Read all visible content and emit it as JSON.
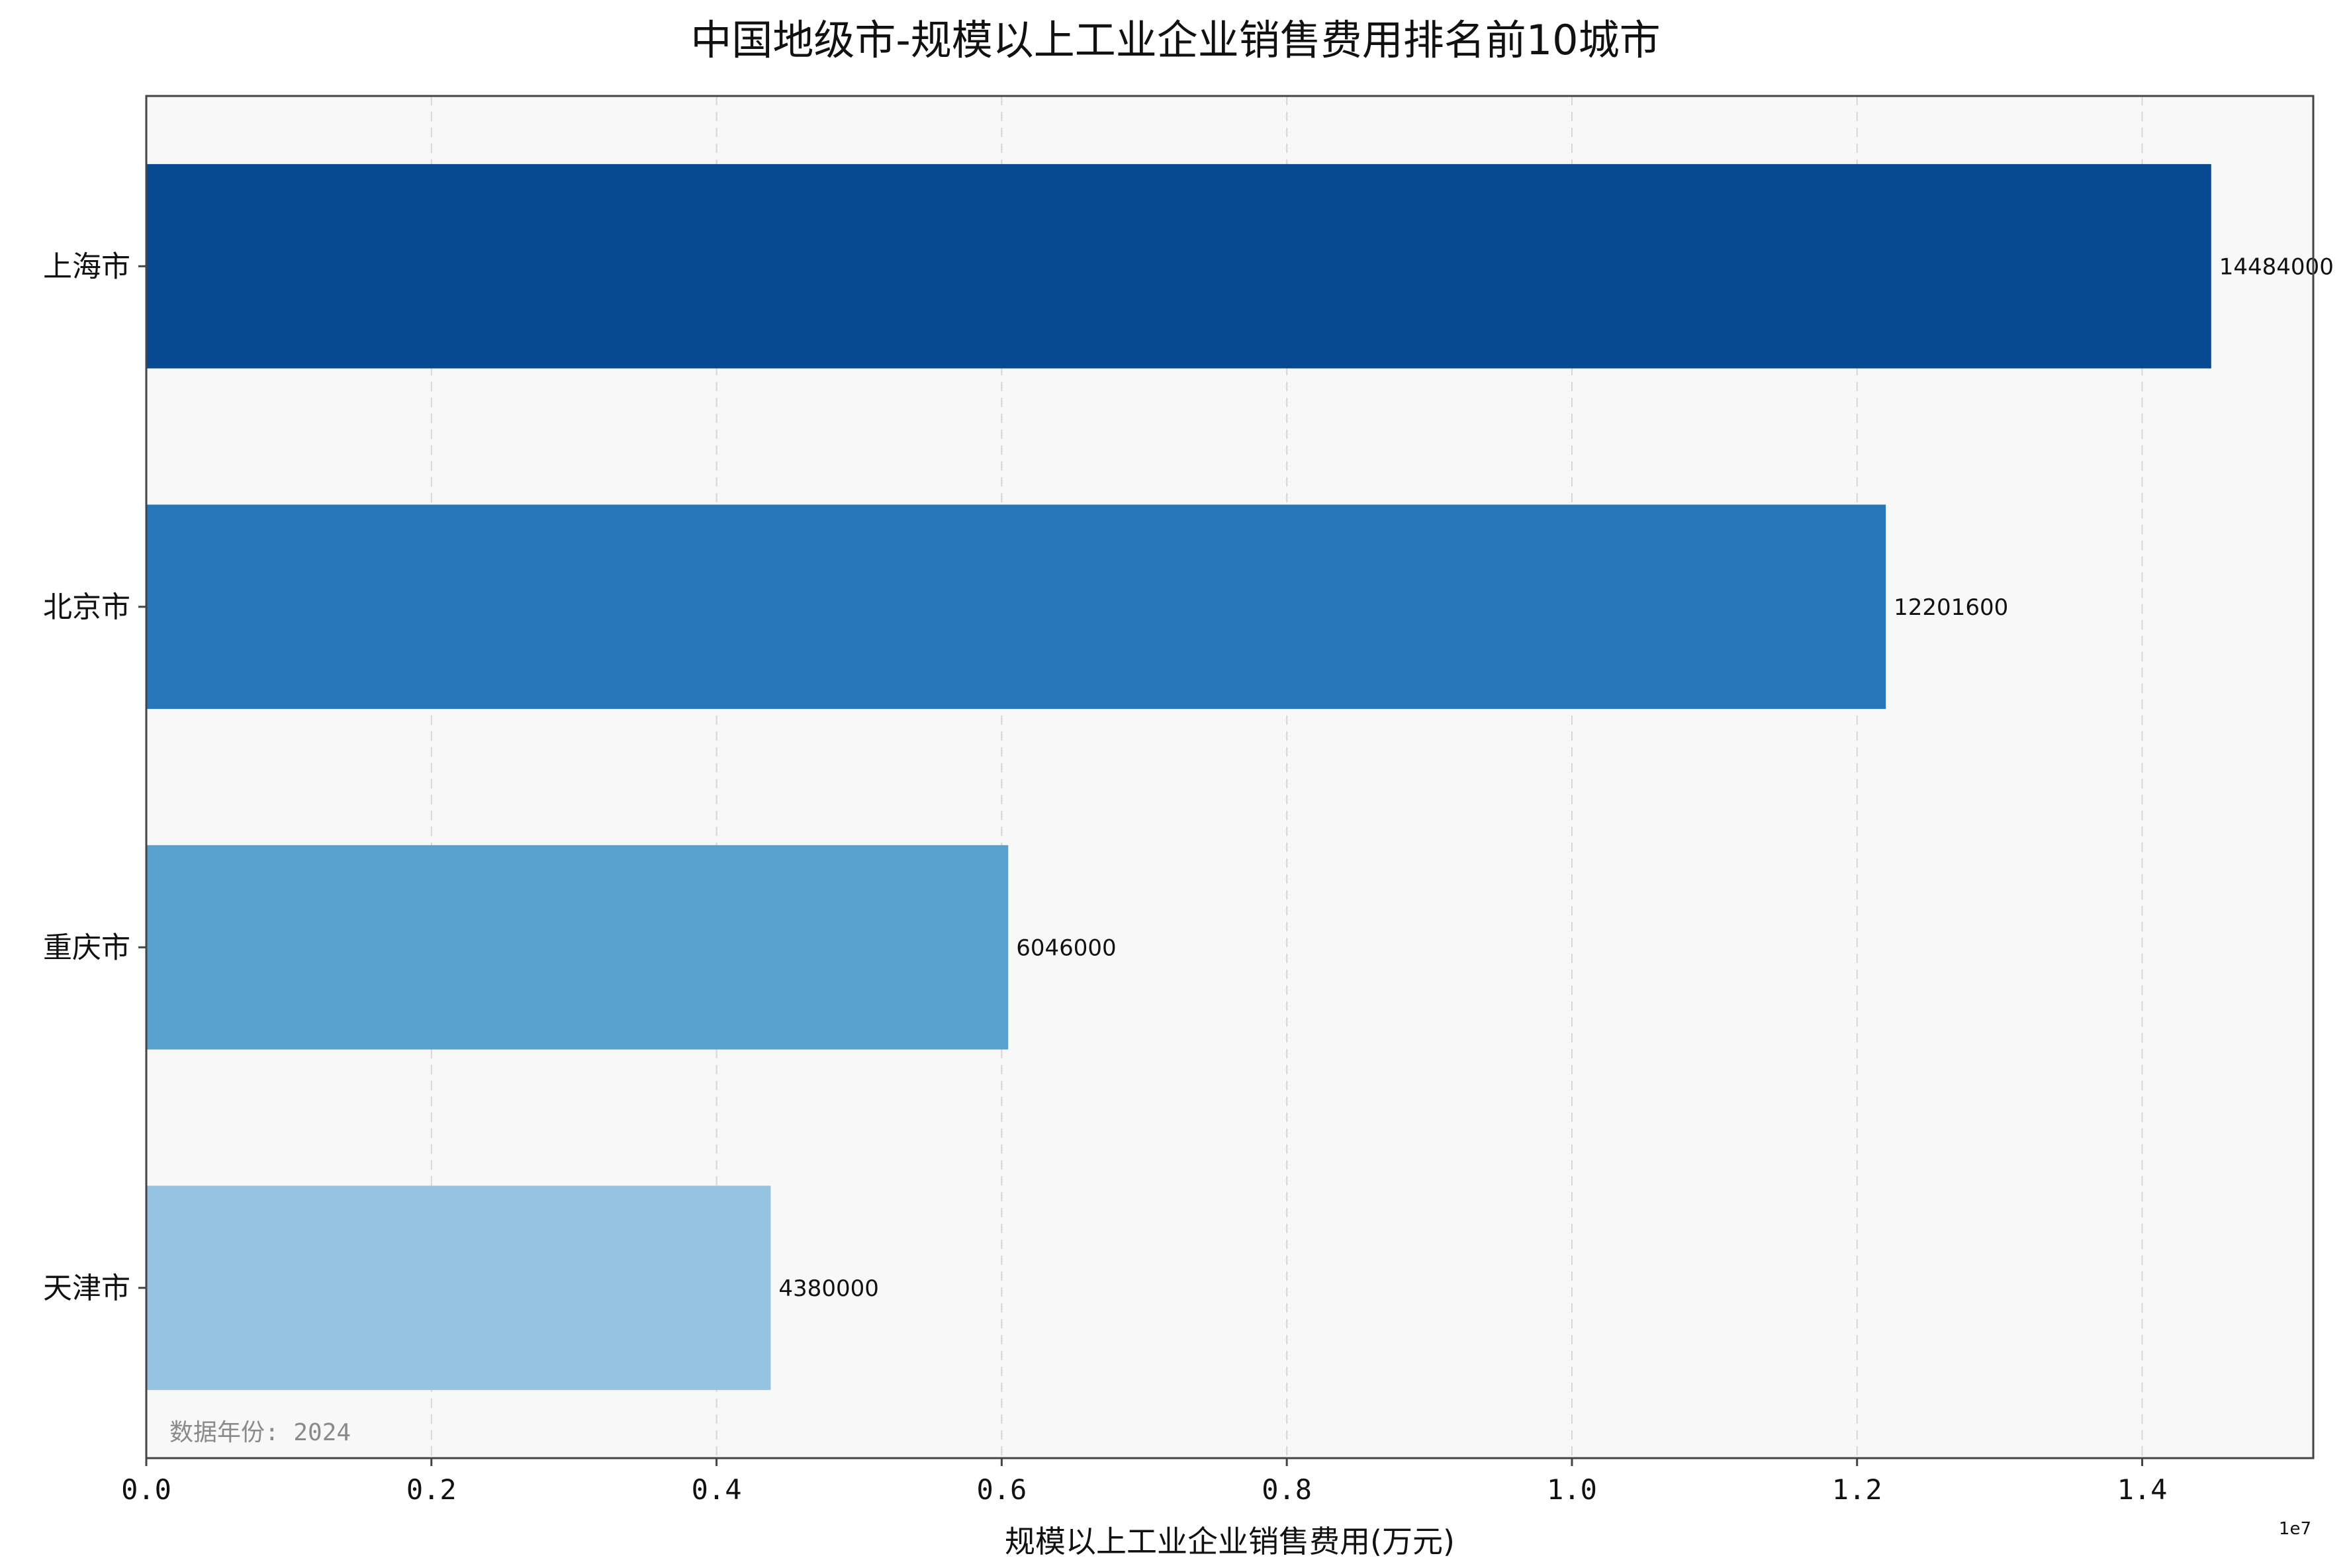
{
  "chart_data": {
    "type": "bar",
    "orientation": "horizontal",
    "title": "中国地级市-规模以上工业企业销售费用排名前10城市",
    "xlabel": "规模以上工业企业销售费用(万元)",
    "ylabel": "",
    "axis_offset_label": "1e7",
    "categories": [
      "上海市",
      "北京市",
      "重庆市",
      "天津市"
    ],
    "values": [
      14484000,
      12201600,
      6046000,
      4380000
    ],
    "value_labels": [
      "14484000",
      "12201600",
      "6046000",
      "4380000"
    ],
    "colors": [
      "#084a91",
      "#2676b8",
      "#58a0cd",
      "#94c4e0"
    ],
    "xlim": [
      0,
      15200000
    ],
    "xticks": [
      0,
      2000000,
      4000000,
      6000000,
      8000000,
      10000000,
      12000000,
      14000000
    ],
    "xtick_labels": [
      "0.0",
      "0.2",
      "0.4",
      "0.6",
      "0.8",
      "1.0",
      "1.2",
      "1.4"
    ],
    "grid": "vertical dashed",
    "note": "数据年份: 2024",
    "plot_background": "#f8f8f8"
  }
}
